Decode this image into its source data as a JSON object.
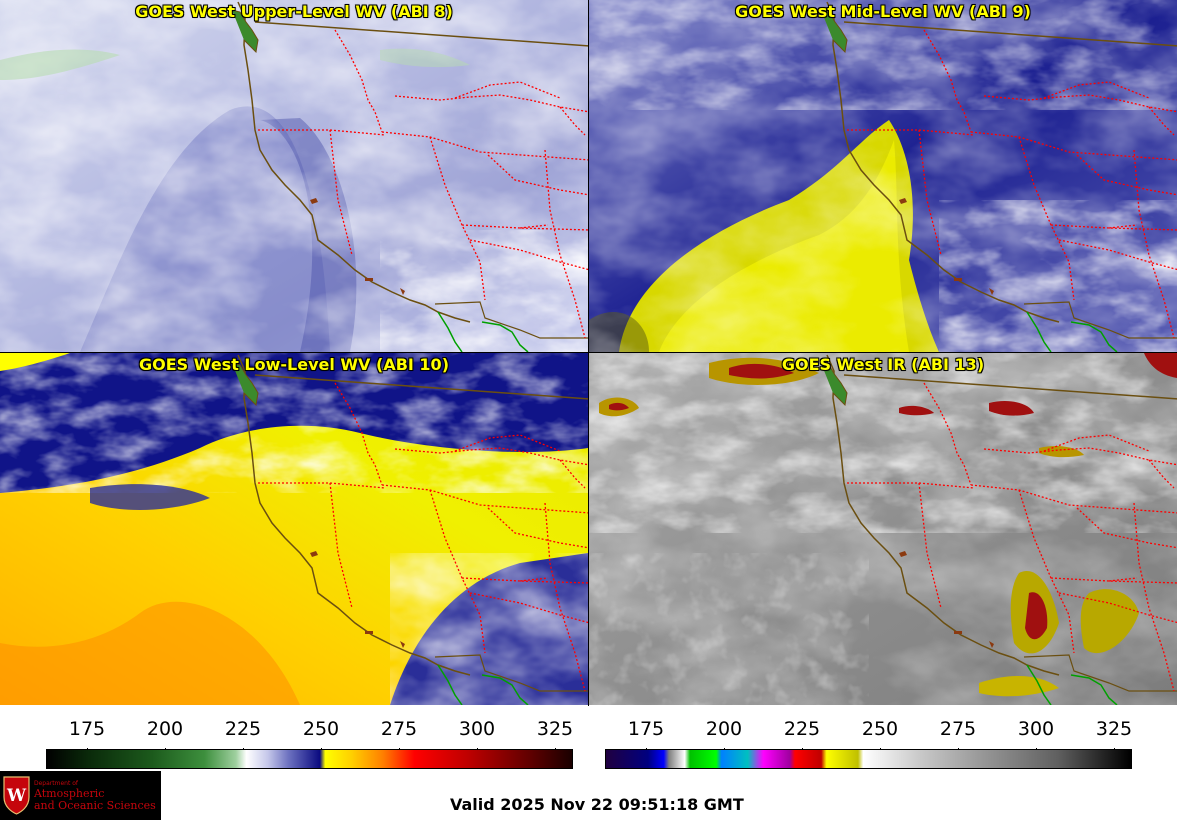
{
  "panels": {
    "upper": {
      "title": "GOES West Upper-Level WV (ABI 8)"
    },
    "mid": {
      "title": "GOES West Mid-Level WV (ABI 9)"
    },
    "low": {
      "title": "GOES West Low-Level WV (ABI 10)"
    },
    "ir": {
      "title": "GOES West IR (ABI 13)"
    }
  },
  "colorbars": {
    "wv": {
      "ticks": [
        "175",
        "200",
        "225",
        "250",
        "275",
        "300",
        "325"
      ]
    },
    "ir": {
      "ticks": [
        "175",
        "200",
        "225",
        "250",
        "275",
        "300",
        "325"
      ]
    }
  },
  "logo": {
    "line1": "Department of",
    "line2": "Atmospheric",
    "line3": "and Oceanic Sciences",
    "crest_letter": "W"
  },
  "footer": {
    "valid": "Valid 2025 Nov 22 09:51:18 GMT"
  },
  "colors": {
    "title": "#ffff00",
    "state_borders": "#ff0000",
    "coastline": "#6b4f10",
    "mexico_border": "#00a000",
    "logo_red": "#c5050c"
  }
}
